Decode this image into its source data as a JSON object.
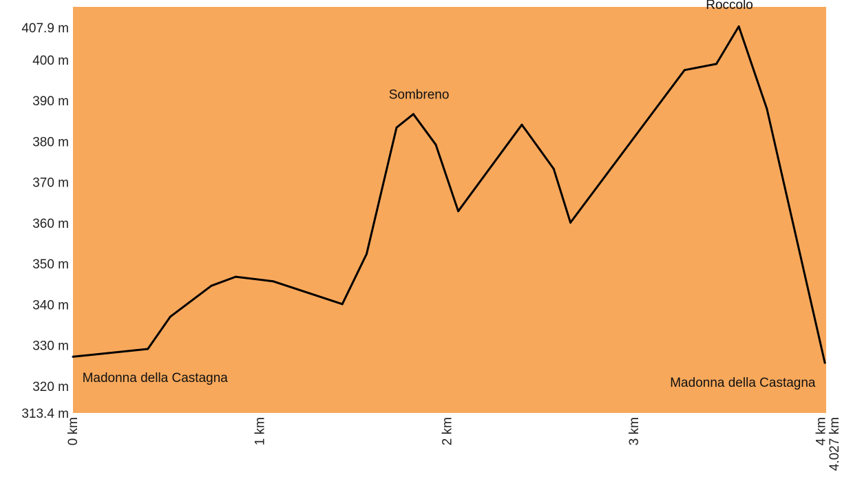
{
  "chart_data": {
    "type": "area",
    "title": "",
    "xlabel": "",
    "ylabel": "",
    "xlim": [
      0,
      4.027
    ],
    "ylim": [
      313.4,
      413
    ],
    "x_ticks": [
      {
        "value": 0,
        "label": "0 km"
      },
      {
        "value": 1,
        "label": "1 km"
      },
      {
        "value": 2,
        "label": "2 km"
      },
      {
        "value": 3,
        "label": "3 km"
      },
      {
        "value": 4,
        "label": "4 km"
      },
      {
        "value": 4.027,
        "label": "4.027 km"
      }
    ],
    "y_ticks": [
      {
        "value": 313.4,
        "label": "313.4 m"
      },
      {
        "value": 320,
        "label": "320 m"
      },
      {
        "value": 330,
        "label": "330 m"
      },
      {
        "value": 340,
        "label": "340 m"
      },
      {
        "value": 350,
        "label": "350 m"
      },
      {
        "value": 360,
        "label": "360 m"
      },
      {
        "value": 370,
        "label": "370 m"
      },
      {
        "value": 380,
        "label": "380 m"
      },
      {
        "value": 390,
        "label": "390 m"
      },
      {
        "value": 400,
        "label": "400 m"
      },
      {
        "value": 407.9,
        "label": "407.9 m"
      }
    ],
    "grid": false,
    "fill_color": "#f8a85b",
    "line_color": "#000000",
    "series": [
      {
        "x": [
          0,
          0.4,
          0.52,
          0.74,
          0.87,
          1.07,
          1.44,
          1.57,
          1.73,
          1.82,
          1.94,
          2.06,
          2.4,
          2.57,
          2.66,
          3.27,
          3.44,
          3.56,
          3.71,
          4.02
        ],
        "y": [
          327.2,
          329.1,
          337.0,
          344.6,
          346.8,
          345.7,
          340.1,
          352.4,
          383.4,
          386.7,
          379.2,
          362.9,
          384.1,
          373.3,
          360.1,
          397.5,
          399.0,
          408.2,
          388.0,
          325.7
        ]
      }
    ],
    "annotations": [
      {
        "text": "Madonna della Castagna",
        "x": 0.05,
        "y": 321.0
      },
      {
        "text": "Sombreno",
        "x": 1.85,
        "y": 390.5
      },
      {
        "text": "Roccolo",
        "x": 3.51,
        "y": 412.5
      },
      {
        "text": "Madonna della Castagna",
        "x": 3.97,
        "y": 319.8
      }
    ]
  }
}
